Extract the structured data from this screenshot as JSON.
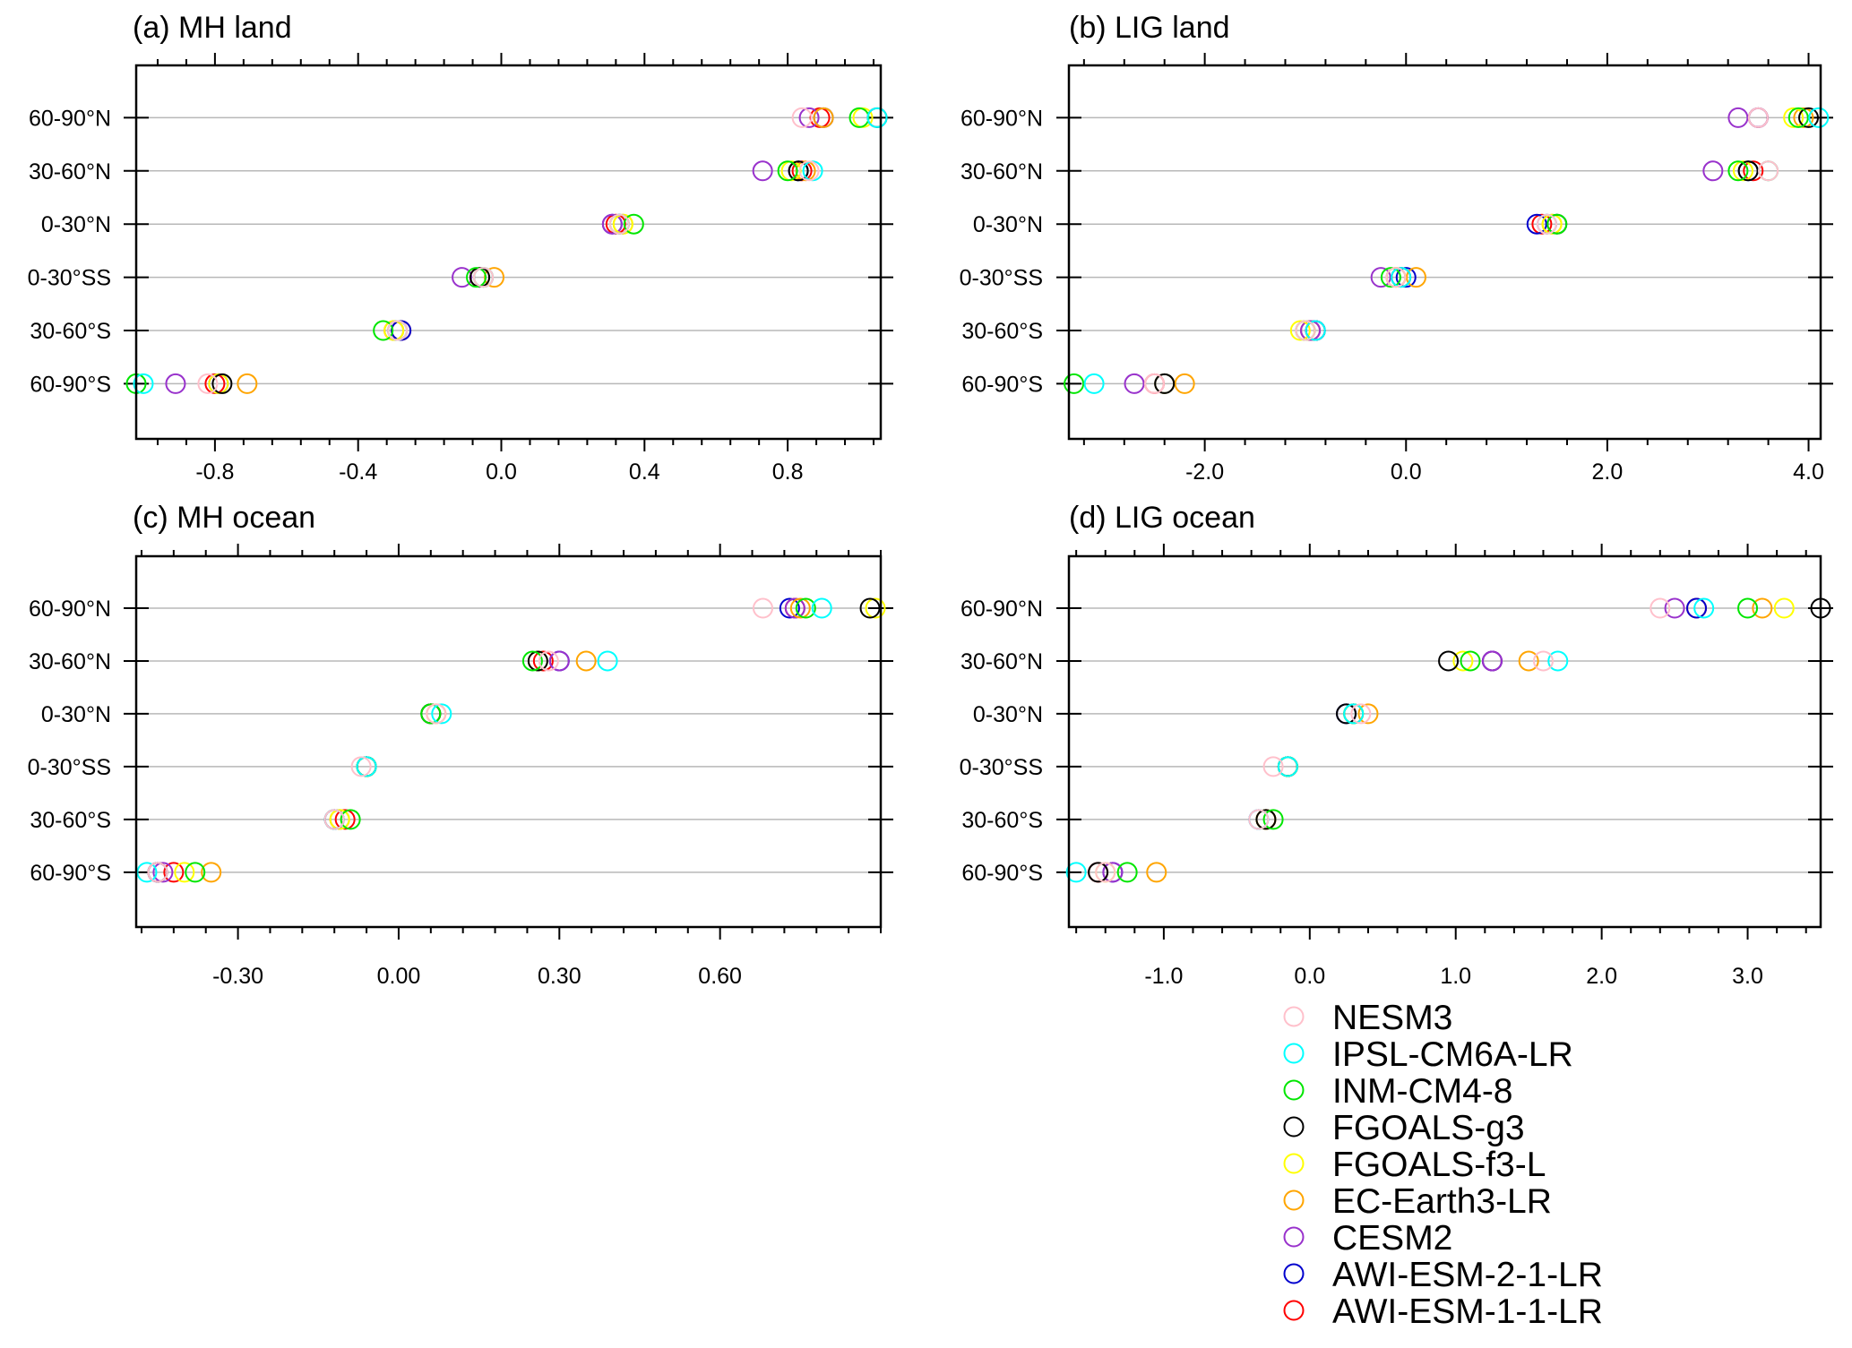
{
  "models": [
    {
      "name": "NESM3",
      "color": "#ffc0cb"
    },
    {
      "name": "IPSL-CM6A-LR",
      "color": "#00ffff"
    },
    {
      "name": "INM-CM4-8",
      "color": "#00e600"
    },
    {
      "name": "FGOALS-g3",
      "color": "#000000"
    },
    {
      "name": "FGOALS-f3-L",
      "color": "#ffff00"
    },
    {
      "name": "EC-Earth3-LR",
      "color": "#ffa500"
    },
    {
      "name": "CESM2",
      "color": "#9932cc"
    },
    {
      "name": "AWI-ESM-2-1-LR",
      "color": "#0000cd"
    },
    {
      "name": "AWI-ESM-1-1-LR",
      "color": "#ff0000"
    }
  ],
  "chart_data": [
    {
      "type": "scatter",
      "title": "(a) MH land",
      "categories": [
        "60-90°N",
        "30-60°N",
        "0-30°N",
        "0-30°SS",
        "30-60°S",
        "60-90°S"
      ],
      "xlim": [
        -1.02,
        1.06
      ],
      "xticks": [
        "-0.8",
        "-0.4",
        "0.0",
        "0.4",
        "0.8"
      ],
      "xtick_values": [
        -0.8,
        -0.4,
        0.0,
        0.4,
        0.8
      ],
      "grid": "horizontal",
      "series": [
        {
          "name": "NESM3",
          "values": [
            0.84,
            0.86,
            0.33,
            -0.05,
            -0.29,
            -0.82
          ]
        },
        {
          "name": "IPSL-CM6A-LR",
          "values": [
            1.05,
            0.87,
            0.33,
            -0.05,
            -0.29,
            -1.0
          ]
        },
        {
          "name": "INM-CM4-8",
          "values": [
            1.0,
            0.8,
            0.37,
            -0.07,
            -0.33,
            -1.02
          ]
        },
        {
          "name": "FGOALS-g3",
          "values": [
            1.05,
            0.83,
            0.33,
            -0.06,
            -0.29,
            -0.78
          ]
        },
        {
          "name": "FGOALS-f3-L",
          "values": [
            1.01,
            0.81,
            0.34,
            -0.05,
            -0.3,
            -0.79
          ]
        },
        {
          "name": "EC-Earth3-LR",
          "values": [
            0.9,
            0.85,
            0.34,
            -0.02,
            -0.3,
            -0.71
          ]
        },
        {
          "name": "CESM2",
          "values": [
            0.86,
            0.73,
            0.31,
            -0.11,
            -0.3,
            -0.91
          ]
        },
        {
          "name": "AWI-ESM-2-1-LR",
          "values": [
            0.9,
            0.83,
            0.31,
            -0.05,
            -0.28,
            -0.79
          ]
        },
        {
          "name": "AWI-ESM-1-1-LR",
          "values": [
            0.89,
            0.84,
            0.32,
            -0.06,
            -0.28,
            -0.8
          ]
        }
      ]
    },
    {
      "type": "scatter",
      "title": "(b) LIG land",
      "categories": [
        "60-90°N",
        "30-60°N",
        "0-30°N",
        "0-30°SS",
        "30-60°S",
        "60-90°S"
      ],
      "xlim": [
        -3.35,
        4.12
      ],
      "xticks": [
        "-2.0",
        "0.0",
        "2.0",
        "4.0"
      ],
      "xtick_values": [
        -2.0,
        0.0,
        2.0,
        4.0
      ],
      "grid": "horizontal",
      "series": [
        {
          "name": "NESM3",
          "values": [
            3.5,
            3.6,
            1.4,
            -0.1,
            -1.0,
            -2.5
          ]
        },
        {
          "name": "IPSL-CM6A-LR",
          "values": [
            4.1,
            3.6,
            1.4,
            -0.05,
            -0.9,
            -3.1
          ]
        },
        {
          "name": "INM-CM4-8",
          "values": [
            3.9,
            3.3,
            1.5,
            -0.15,
            -1.0,
            -3.3
          ]
        },
        {
          "name": "FGOALS-g3",
          "values": [
            4.0,
            3.4,
            1.5,
            -0.05,
            -0.9,
            -2.4
          ]
        },
        {
          "name": "FGOALS-f3-L",
          "values": [
            3.85,
            3.35,
            1.45,
            -0.1,
            -1.05,
            -2.4
          ]
        },
        {
          "name": "EC-Earth3-LR",
          "values": [
            3.95,
            3.6,
            1.45,
            0.1,
            -1.0,
            -2.2
          ]
        },
        {
          "name": "CESM2",
          "values": [
            3.3,
            3.05,
            1.4,
            -0.25,
            -0.95,
            -2.7
          ]
        },
        {
          "name": "AWI-ESM-2-1-LR",
          "values": [
            3.5,
            3.4,
            1.3,
            0.0,
            -0.9,
            -2.4
          ]
        },
        {
          "name": "AWI-ESM-1-1-LR",
          "values": [
            3.5,
            3.45,
            1.35,
            -0.1,
            -0.95,
            -2.5
          ]
        }
      ]
    },
    {
      "type": "scatter",
      "title": "(c) MH ocean",
      "categories": [
        "60-90°N",
        "30-60°N",
        "0-30°N",
        "0-30°SS",
        "30-60°S",
        "60-90°S"
      ],
      "xlim": [
        -0.49,
        0.9
      ],
      "xticks": [
        "-0.30",
        "0.00",
        "0.30",
        "0.60"
      ],
      "xtick_values": [
        -0.3,
        0.0,
        0.3,
        0.6
      ],
      "grid": "horizontal",
      "series": [
        {
          "name": "NESM3",
          "values": [
            0.68,
            0.28,
            0.07,
            -0.07,
            -0.12,
            -0.45
          ]
        },
        {
          "name": "IPSL-CM6A-LR",
          "values": [
            0.79,
            0.39,
            0.08,
            -0.06,
            -0.12,
            -0.47
          ]
        },
        {
          "name": "INM-CM4-8",
          "values": [
            0.76,
            0.25,
            0.06,
            -0.06,
            -0.09,
            -0.38
          ]
        },
        {
          "name": "FGOALS-g3",
          "values": [
            0.88,
            0.26,
            0.06,
            -0.06,
            -0.12,
            -0.45
          ]
        },
        {
          "name": "FGOALS-f3-L",
          "values": [
            0.89,
            0.26,
            0.06,
            -0.06,
            -0.11,
            -0.4
          ]
        },
        {
          "name": "EC-Earth3-LR",
          "values": [
            0.75,
            0.35,
            0.07,
            -0.06,
            -0.11,
            -0.35
          ]
        },
        {
          "name": "CESM2",
          "values": [
            0.74,
            0.3,
            0.06,
            -0.06,
            -0.11,
            -0.44
          ]
        },
        {
          "name": "AWI-ESM-2-1-LR",
          "values": [
            0.73,
            0.3,
            0.06,
            -0.06,
            -0.12,
            -0.45
          ]
        },
        {
          "name": "AWI-ESM-1-1-LR",
          "values": [
            0.74,
            0.27,
            0.06,
            -0.06,
            -0.1,
            -0.42
          ]
        }
      ]
    },
    {
      "type": "scatter",
      "title": "(d) LIG ocean",
      "categories": [
        "60-90°N",
        "30-60°N",
        "0-30°N",
        "0-30°SS",
        "30-60°S",
        "60-90°S"
      ],
      "xlim": [
        -1.65,
        3.5
      ],
      "xticks": [
        "-1.0",
        "0.0",
        "1.0",
        "2.0",
        "3.0"
      ],
      "xtick_values": [
        -1.0,
        0.0,
        1.0,
        2.0,
        3.0
      ],
      "grid": "horizontal",
      "series": [
        {
          "name": "NESM3",
          "values": [
            2.4,
            1.6,
            0.35,
            -0.25,
            -0.35,
            -1.4
          ]
        },
        {
          "name": "IPSL-CM6A-LR",
          "values": [
            2.7,
            1.7,
            0.3,
            -0.15,
            -0.35,
            -1.6
          ]
        },
        {
          "name": "INM-CM4-8",
          "values": [
            3.0,
            1.1,
            0.3,
            -0.15,
            -0.25,
            -1.25
          ]
        },
        {
          "name": "FGOALS-g3",
          "values": [
            3.5,
            0.95,
            0.25,
            -0.15,
            -0.3,
            -1.45
          ]
        },
        {
          "name": "FGOALS-f3-L",
          "values": [
            3.25,
            1.05,
            0.3,
            -0.15,
            -0.3,
            -1.4
          ]
        },
        {
          "name": "EC-Earth3-LR",
          "values": [
            3.1,
            1.5,
            0.4,
            -0.15,
            -0.3,
            -1.05
          ]
        },
        {
          "name": "CESM2",
          "values": [
            2.5,
            1.25,
            0.3,
            -0.15,
            -0.3,
            -1.35
          ]
        },
        {
          "name": "AWI-ESM-2-1-LR",
          "values": [
            2.65,
            1.25,
            0.25,
            -0.15,
            -0.35,
            -1.35
          ]
        },
        {
          "name": "AWI-ESM-1-1-LR",
          "values": [
            2.65,
            1.25,
            0.3,
            -0.15,
            -0.3,
            -1.45
          ]
        }
      ]
    }
  ]
}
